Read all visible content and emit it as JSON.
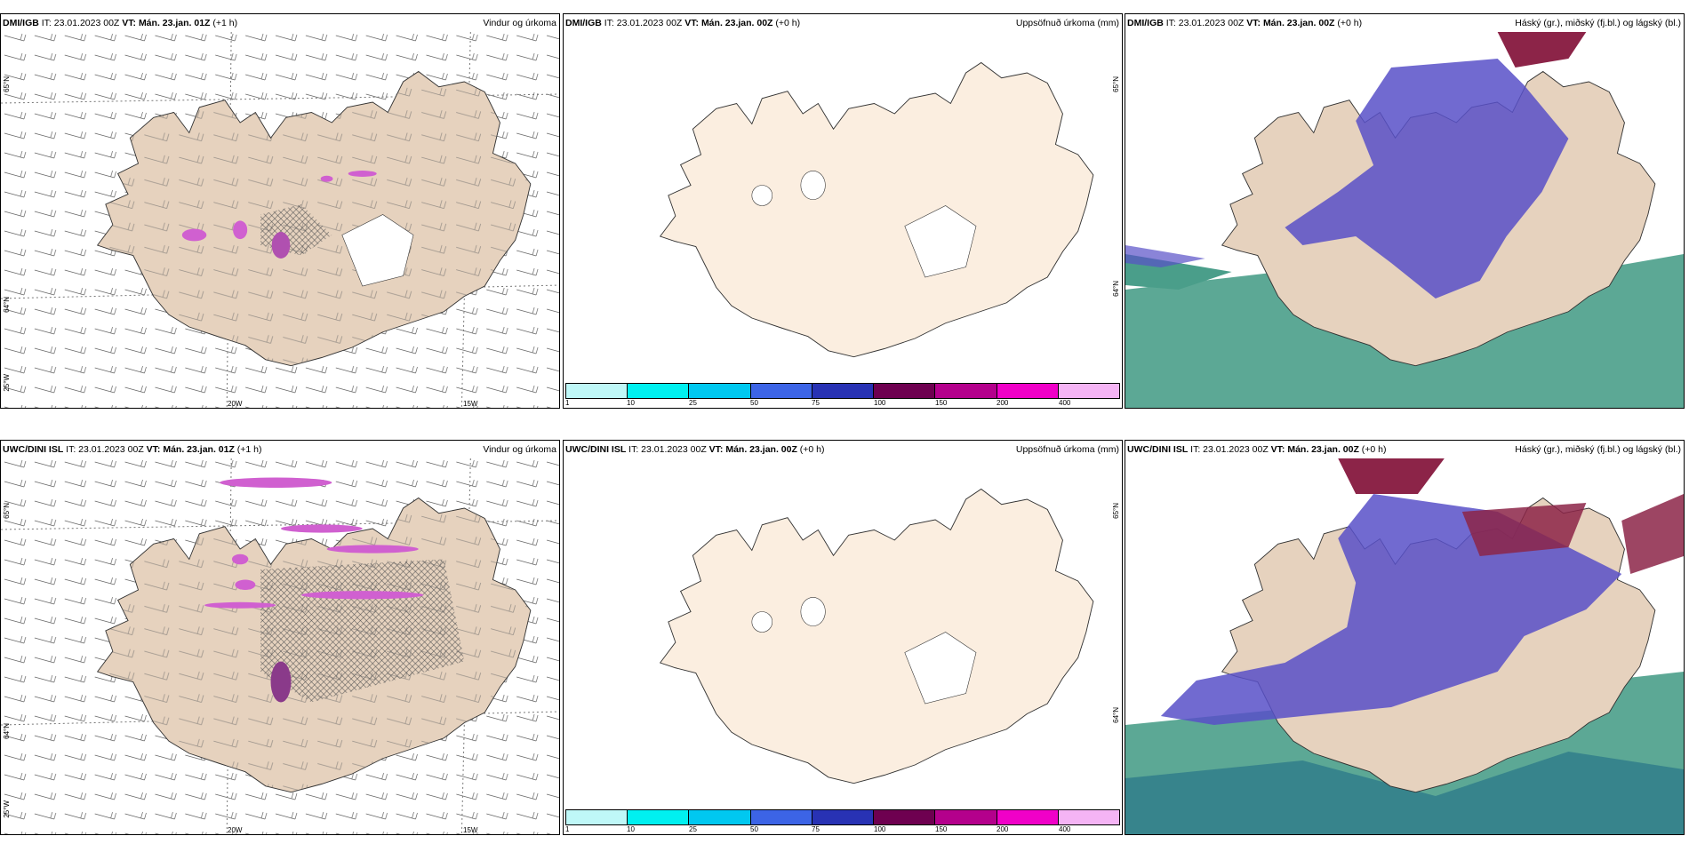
{
  "colors": {
    "land": "#e6d2be",
    "land_light": "#fbeee0",
    "sea_green": "#4a9e8a",
    "cloud_blue": "#5850c8",
    "cloud_red": "#8c2448",
    "precip": "#d060d0"
  },
  "panels": {
    "p1": {
      "source": "DMI/IGB",
      "it": "IT: 23.01.2023 00Z",
      "vt_label": "VT:",
      "vt": "Mán. 23.jan. 01Z",
      "lead": "(+1 h)",
      "product": "Vindur og úrkoma",
      "lbl_65n": "65°N",
      "lbl_64n": "64°N",
      "lbl_25w": "25°W",
      "lbl_20w": "20W",
      "lbl_15w": "15W",
      "values": [
        "0.6",
        "0.5",
        "0.8"
      ]
    },
    "p2": {
      "source": "DMI/IGB",
      "it": "IT: 23.01.2023 00Z",
      "vt_label": "VT:",
      "vt": "Mán. 23.jan. 00Z",
      "lead": "(+0 h)",
      "product": "Uppsöfnuð úrkoma (mm)",
      "lbl_65n": "65°N",
      "lbl_64n": "64°N"
    },
    "p3": {
      "source": "DMI/IGB",
      "it": "IT: 23.01.2023 00Z",
      "vt_label": "VT:",
      "vt": "Mán. 23.jan. 00Z",
      "lead": "(+0 h)",
      "product": "Háský (gr.), miðský (fj.bl.) og lágský (bl.)"
    },
    "p4": {
      "source": "UWC/DINI ISL",
      "it": "IT: 23.01.2023 00Z",
      "vt_label": "VT:",
      "vt": "Mán. 23.jan. 01Z",
      "lead": "(+1 h)",
      "product": "Vindur og úrkoma",
      "lbl_65n": "65°N",
      "lbl_64n": "64°N",
      "lbl_25w": "25°W",
      "lbl_20w": "20W",
      "lbl_15w": "15W",
      "values": [
        "0.6",
        "0.6",
        "0.6",
        "0.7",
        "0.8",
        "0.3",
        "0.8",
        "0.3"
      ]
    },
    "p5": {
      "source": "UWC/DINI ISL",
      "it": "IT: 23.01.2023 00Z",
      "vt_label": "VT:",
      "vt": "Mán. 23.jan. 00Z",
      "lead": "(+0 h)",
      "product": "Uppsöfnuð úrkoma (mm)",
      "lbl_65n": "65°N",
      "lbl_64n": "64°N"
    },
    "p6": {
      "source": "UWC/DINI ISL",
      "it": "IT: 23.01.2023 00Z",
      "vt_label": "VT:",
      "vt": "Mán. 23.jan. 00Z",
      "lead": "(+0 h)",
      "product": "Háský (gr.), miðský (fj.bl.) og lágský (bl.)"
    }
  },
  "colorbar": {
    "colors": [
      "#bff8f8",
      "#00f0f0",
      "#00c8f0",
      "#3c64e6",
      "#2832b4",
      "#6e0050",
      "#b4008c",
      "#f000c8",
      "#f5b4f5"
    ],
    "ticks": [
      "1",
      "10",
      "25",
      "50",
      "75",
      "100",
      "150",
      "200",
      "400"
    ]
  }
}
